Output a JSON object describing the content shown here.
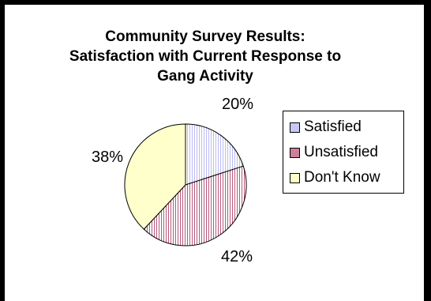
{
  "chart_data": {
    "type": "pie",
    "title_lines": [
      "Community Survey Results:",
      "Satisfaction with Current Response to",
      "Gang Activity"
    ],
    "categories": [
      "Satisfied",
      "Unsatisfied",
      "Don't Know"
    ],
    "values": [
      20,
      42,
      38
    ],
    "labels": [
      "20%",
      "42%",
      "38%"
    ],
    "colors": [
      "#c8c8f4",
      "#cc7f99",
      "#ffffcc"
    ],
    "legend_position": "right"
  }
}
